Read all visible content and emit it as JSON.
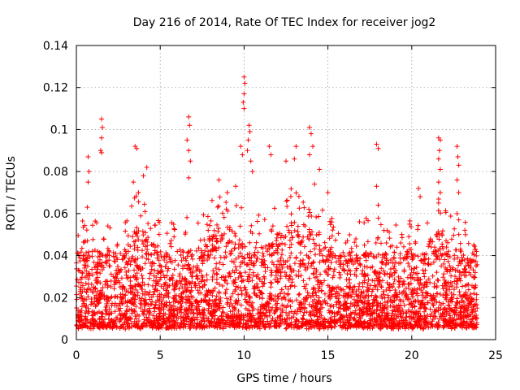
{
  "chart_data": {
    "type": "scatter",
    "title": "Day 216 of 2014, Rate Of TEC Index for receiver jog2",
    "xlabel": "GPS time / hours",
    "ylabel": "ROTI / TECUs",
    "xlim": [
      0,
      25
    ],
    "ylim": [
      0,
      0.14
    ],
    "xticks": [
      "0",
      "5",
      "10",
      "15",
      "20",
      "25"
    ],
    "yticks": [
      "0",
      "0.02",
      "0.04",
      "0.06",
      "0.08",
      "0.1",
      "0.12",
      "0.14"
    ],
    "grid": true,
    "marker": "plus",
    "color": "#ff0000",
    "series": [
      {
        "name": "ROTI",
        "x_range": [
          0,
          23.9
        ],
        "typical_range": [
          0.005,
          0.05
        ],
        "points": [
          [
            1.5,
            0.105
          ],
          [
            1.55,
            0.101
          ],
          [
            1.5,
            0.096
          ],
          [
            1.45,
            0.09
          ],
          [
            1.5,
            0.089
          ],
          [
            0.7,
            0.087
          ],
          [
            0.75,
            0.08
          ],
          [
            0.7,
            0.075
          ],
          [
            0.65,
            0.063
          ],
          [
            3.5,
            0.092
          ],
          [
            3.6,
            0.091
          ],
          [
            3.4,
            0.075
          ],
          [
            3.7,
            0.07
          ],
          [
            4.2,
            0.082
          ],
          [
            4.0,
            0.078
          ],
          [
            6.7,
            0.106
          ],
          [
            6.75,
            0.102
          ],
          [
            6.6,
            0.095
          ],
          [
            6.7,
            0.09
          ],
          [
            6.8,
            0.085
          ],
          [
            6.7,
            0.077
          ],
          [
            8.5,
            0.076
          ],
          [
            9.0,
            0.07
          ],
          [
            9.5,
            0.073
          ],
          [
            10.0,
            0.125
          ],
          [
            10.05,
            0.122
          ],
          [
            10.0,
            0.117
          ],
          [
            9.95,
            0.113
          ],
          [
            10.0,
            0.11
          ],
          [
            10.3,
            0.102
          ],
          [
            10.35,
            0.099
          ],
          [
            10.25,
            0.095
          ],
          [
            10.2,
            0.09
          ],
          [
            10.4,
            0.085
          ],
          [
            9.8,
            0.092
          ],
          [
            9.9,
            0.088
          ],
          [
            10.5,
            0.08
          ],
          [
            11.5,
            0.092
          ],
          [
            11.6,
            0.088
          ],
          [
            12.5,
            0.085
          ],
          [
            13.1,
            0.092
          ],
          [
            13.0,
            0.086
          ],
          [
            13.9,
            0.101
          ],
          [
            14.0,
            0.098
          ],
          [
            14.1,
            0.092
          ],
          [
            13.9,
            0.088
          ],
          [
            14.5,
            0.081
          ],
          [
            14.2,
            0.074
          ],
          [
            15.0,
            0.07
          ],
          [
            17.9,
            0.093
          ],
          [
            18.0,
            0.091
          ],
          [
            17.9,
            0.073
          ],
          [
            18.0,
            0.064
          ],
          [
            20.4,
            0.072
          ],
          [
            20.5,
            0.068
          ],
          [
            21.6,
            0.096
          ],
          [
            21.7,
            0.095
          ],
          [
            21.65,
            0.09
          ],
          [
            21.6,
            0.086
          ],
          [
            21.7,
            0.081
          ],
          [
            21.6,
            0.075
          ],
          [
            21.7,
            0.07
          ],
          [
            21.6,
            0.065
          ],
          [
            22.7,
            0.092
          ],
          [
            22.75,
            0.087
          ],
          [
            22.8,
            0.083
          ],
          [
            22.7,
            0.076
          ],
          [
            22.8,
            0.07
          ],
          [
            22.7,
            0.06
          ],
          [
            22.8,
            0.057
          ],
          [
            23.7,
            0.045
          ],
          [
            23.8,
            0.043
          ],
          [
            23.7,
            0.03
          ],
          [
            23.8,
            0.025
          ],
          [
            23.9,
            0.015
          ],
          [
            23.8,
            0.01
          ]
        ]
      }
    ]
  }
}
